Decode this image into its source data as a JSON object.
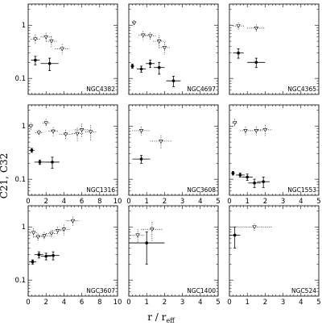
{
  "chart_data": {
    "type": "scatter",
    "ylabel": "C21, C32",
    "xlabel_main": "r / r",
    "xlabel_sub": "eff",
    "y_scale": "log",
    "ylim": [
      0.05,
      2.5
    ],
    "y_ticks": [
      0.1,
      1
    ],
    "y_tick_labels": [
      "0.1",
      "1"
    ],
    "marker_c21": "filled circle with solid error bars",
    "marker_c32": "open triangle with dotted error bars",
    "panels": [
      {
        "name": "NGC4382",
        "row": 0,
        "col": 0,
        "xlim": [
          0,
          5
        ],
        "x_ticks": [
          0,
          1,
          2,
          3,
          4,
          5
        ],
        "x_tick_labels": [],
        "c21": [
          {
            "x": 0.4,
            "y": 0.22,
            "xerr": 0.25,
            "yerr": 0.04
          },
          {
            "x": 1.2,
            "y": 0.19,
            "xerr": 0.5,
            "yerr": 0.05
          }
        ],
        "c32": [
          {
            "x": 0.4,
            "y": 0.55,
            "xerr": 0.25,
            "yerr": 0.12
          },
          {
            "x": 1.0,
            "y": 0.6,
            "xerr": 0.3,
            "yerr": 0.12
          },
          {
            "x": 1.3,
            "y": 0.5,
            "xerr": 0.3,
            "yerr": 0.12
          },
          {
            "x": 1.9,
            "y": 0.36,
            "xerr": 0.4,
            "yerr": 0.08
          }
        ]
      },
      {
        "name": "NGC4697",
        "row": 0,
        "col": 1,
        "xlim": [
          0,
          5
        ],
        "x_ticks": [
          0,
          1,
          2,
          3,
          4,
          5
        ],
        "x_tick_labels": [],
        "c21": [
          {
            "x": 0.2,
            "y": 0.17,
            "xerr": 0.1,
            "yerr": 0.015
          },
          {
            "x": 0.7,
            "y": 0.15,
            "xerr": 0.25,
            "yerr": 0.02
          },
          {
            "x": 1.2,
            "y": 0.19,
            "xerr": 0.25,
            "yerr": 0.03
          },
          {
            "x": 1.7,
            "y": 0.16,
            "xerr": 0.3,
            "yerr": 0.04
          },
          {
            "x": 2.5,
            "y": 0.09,
            "xerr": 0.4,
            "yerr": 0.02
          }
        ],
        "c32": [
          {
            "x": 0.3,
            "y": 1.1,
            "xerr": 0.1,
            "yerr": 0.15
          },
          {
            "x": 0.8,
            "y": 0.65,
            "xerr": 0.25,
            "yerr": 0.12
          },
          {
            "x": 1.2,
            "y": 0.63,
            "xerr": 0.3,
            "yerr": 0.1
          },
          {
            "x": 1.7,
            "y": 0.5,
            "xerr": 0.35,
            "yerr": 0.15
          },
          {
            "x": 2.0,
            "y": 0.38,
            "xerr": 0.3,
            "yerr": 0.1
          }
        ]
      },
      {
        "name": "NGC4365",
        "row": 0,
        "col": 2,
        "xlim": [
          0,
          5
        ],
        "x_ticks": [
          0,
          1,
          2,
          3,
          4,
          5
        ],
        "x_tick_labels": [],
        "c21": [
          {
            "x": 0.5,
            "y": 0.3,
            "xerr": 0.3,
            "yerr": 0.06
          },
          {
            "x": 1.5,
            "y": 0.2,
            "xerr": 0.5,
            "yerr": 0.04
          }
        ],
        "c32": [
          {
            "x": 0.5,
            "y": 0.97,
            "xerr": 0.3,
            "yerr": 0.15
          },
          {
            "x": 1.5,
            "y": 0.88,
            "xerr": 0.5,
            "yerr": 0.15
          }
        ]
      },
      {
        "name": "NGC1316",
        "row": 1,
        "col": 0,
        "xlim": [
          0,
          10
        ],
        "x_ticks": [
          0,
          2,
          4,
          6,
          8,
          10
        ],
        "x_tick_labels": [
          "0",
          "2",
          "4",
          "6",
          "8",
          "10"
        ],
        "c21": [
          {
            "x": 0.4,
            "y": 0.35,
            "xerr": 0.3,
            "yerr": 0.03
          },
          {
            "x": 1.3,
            "y": 0.21,
            "xerr": 0.6,
            "yerr": 0.02
          },
          {
            "x": 2.7,
            "y": 0.21,
            "xerr": 0.8,
            "yerr": 0.05
          }
        ],
        "c32": [
          {
            "x": 0.3,
            "y": 1.0,
            "xerr": 0.25,
            "yerr": 0.15
          },
          {
            "x": 1.2,
            "y": 0.75,
            "xerr": 0.4,
            "yerr": 0.1
          },
          {
            "x": 2.0,
            "y": 1.15,
            "xerr": 0.4,
            "yerr": 0.2
          },
          {
            "x": 2.8,
            "y": 0.8,
            "xerr": 0.5,
            "yerr": 0.15
          },
          {
            "x": 4.2,
            "y": 0.7,
            "xerr": 0.7,
            "yerr": 0.15
          },
          {
            "x": 5.5,
            "y": 0.72,
            "xerr": 0.6,
            "yerr": 0.2
          },
          {
            "x": 6.0,
            "y": 0.85,
            "xerr": 0.8,
            "yerr": 0.25
          },
          {
            "x": 7.0,
            "y": 0.78,
            "xerr": 0.6,
            "yerr": 0.25
          }
        ]
      },
      {
        "name": "NGC3608",
        "row": 1,
        "col": 1,
        "xlim": [
          0,
          5
        ],
        "x_ticks": [
          0,
          1,
          2,
          3,
          4,
          5
        ],
        "x_tick_labels": [
          "0",
          "1",
          "2",
          "3",
          "4",
          "5"
        ],
        "c21": [
          {
            "x": 0.7,
            "y": 0.24,
            "xerr": 0.5,
            "yerr": 0.04
          }
        ],
        "c32": [
          {
            "x": 0.7,
            "y": 0.82,
            "xerr": 0.5,
            "yerr": 0.15
          },
          {
            "x": 1.8,
            "y": 0.52,
            "xerr": 0.6,
            "yerr": 0.15
          }
        ]
      },
      {
        "name": "NGC1553",
        "row": 1,
        "col": 2,
        "xlim": [
          0,
          5
        ],
        "x_ticks": [
          0,
          1,
          2,
          3,
          4,
          5
        ],
        "x_tick_labels": [
          "0",
          "1",
          "2",
          "3",
          "4",
          "5"
        ],
        "c21": [
          {
            "x": 0.2,
            "y": 0.13,
            "xerr": 0.1,
            "yerr": 0.01
          },
          {
            "x": 0.6,
            "y": 0.12,
            "xerr": 0.25,
            "yerr": 0.01
          },
          {
            "x": 1.0,
            "y": 0.11,
            "xerr": 0.3,
            "yerr": 0.015
          },
          {
            "x": 1.4,
            "y": 0.085,
            "xerr": 0.35,
            "yerr": 0.015
          },
          {
            "x": 1.9,
            "y": 0.09,
            "xerr": 0.35,
            "yerr": 0.02
          }
        ],
        "c32": [
          {
            "x": 0.3,
            "y": 1.15,
            "xerr": 0.15,
            "yerr": 0.2
          },
          {
            "x": 0.9,
            "y": 0.82,
            "xerr": 0.3,
            "yerr": 0.15
          },
          {
            "x": 1.5,
            "y": 0.82,
            "xerr": 0.35,
            "yerr": 0.15
          },
          {
            "x": 2.0,
            "y": 0.85,
            "xerr": 0.4,
            "yerr": 0.2
          }
        ]
      },
      {
        "name": "NGC3607",
        "row": 2,
        "col": 0,
        "xlim": [
          0,
          10
        ],
        "x_ticks": [
          0,
          2,
          4,
          6,
          8,
          10
        ],
        "x_tick_labels": [
          "0",
          "2",
          "4",
          "6",
          "8",
          "10"
        ],
        "c21": [
          {
            "x": 0.5,
            "y": 0.22,
            "xerr": 0.4,
            "yerr": 0.02
          },
          {
            "x": 1.2,
            "y": 0.3,
            "xerr": 0.5,
            "yerr": 0.04
          },
          {
            "x": 2.0,
            "y": 0.28,
            "xerr": 0.6,
            "yerr": 0.04
          },
          {
            "x": 2.8,
            "y": 0.29,
            "xerr": 0.7,
            "yerr": 0.05
          }
        ],
        "c32": [
          {
            "x": 0.6,
            "y": 0.78,
            "xerr": 0.4,
            "yerr": 0.15
          },
          {
            "x": 1.1,
            "y": 0.65,
            "xerr": 0.5,
            "yerr": 0.1
          },
          {
            "x": 1.8,
            "y": 0.68,
            "xerr": 0.6,
            "yerr": 0.12
          },
          {
            "x": 2.6,
            "y": 0.75,
            "xerr": 0.6,
            "yerr": 0.12
          },
          {
            "x": 3.3,
            "y": 0.85,
            "xerr": 0.6,
            "yerr": 0.15
          },
          {
            "x": 4.0,
            "y": 0.9,
            "xerr": 0.6,
            "yerr": 0.2
          },
          {
            "x": 5.0,
            "y": 1.3,
            "xerr": 0.7,
            "yerr": 0.25
          }
        ]
      },
      {
        "name": "NGC1400",
        "row": 2,
        "col": 1,
        "xlim": [
          0,
          5
        ],
        "x_ticks": [
          0,
          1,
          2,
          3,
          4,
          5
        ],
        "x_tick_labels": [
          "0",
          "1",
          "2",
          "3",
          "4",
          "5"
        ],
        "c21": [
          {
            "x": 1.0,
            "y": 0.5,
            "xerr": 1.0,
            "yerr": 0.3
          }
        ],
        "c32": [
          {
            "x": 0.5,
            "y": 0.7,
            "xerr": 0.4,
            "yerr": 0.2
          },
          {
            "x": 1.3,
            "y": 0.9,
            "xerr": 0.6,
            "yerr": 0.35
          }
        ]
      },
      {
        "name": "NGC524",
        "row": 2,
        "col": 2,
        "xlim": [
          0,
          5
        ],
        "x_ticks": [
          0,
          1,
          2,
          3,
          4,
          5
        ],
        "x_tick_labels": [
          "0",
          "1",
          "2",
          "3",
          "4",
          "5"
        ],
        "c21": [
          {
            "x": 0.3,
            "y": 0.7,
            "xerr": 0.3,
            "yerr": 0.3
          }
        ],
        "c32": [
          {
            "x": 1.4,
            "y": 1.0,
            "xerr": 1.0,
            "yerr": 0.15
          }
        ]
      }
    ]
  }
}
